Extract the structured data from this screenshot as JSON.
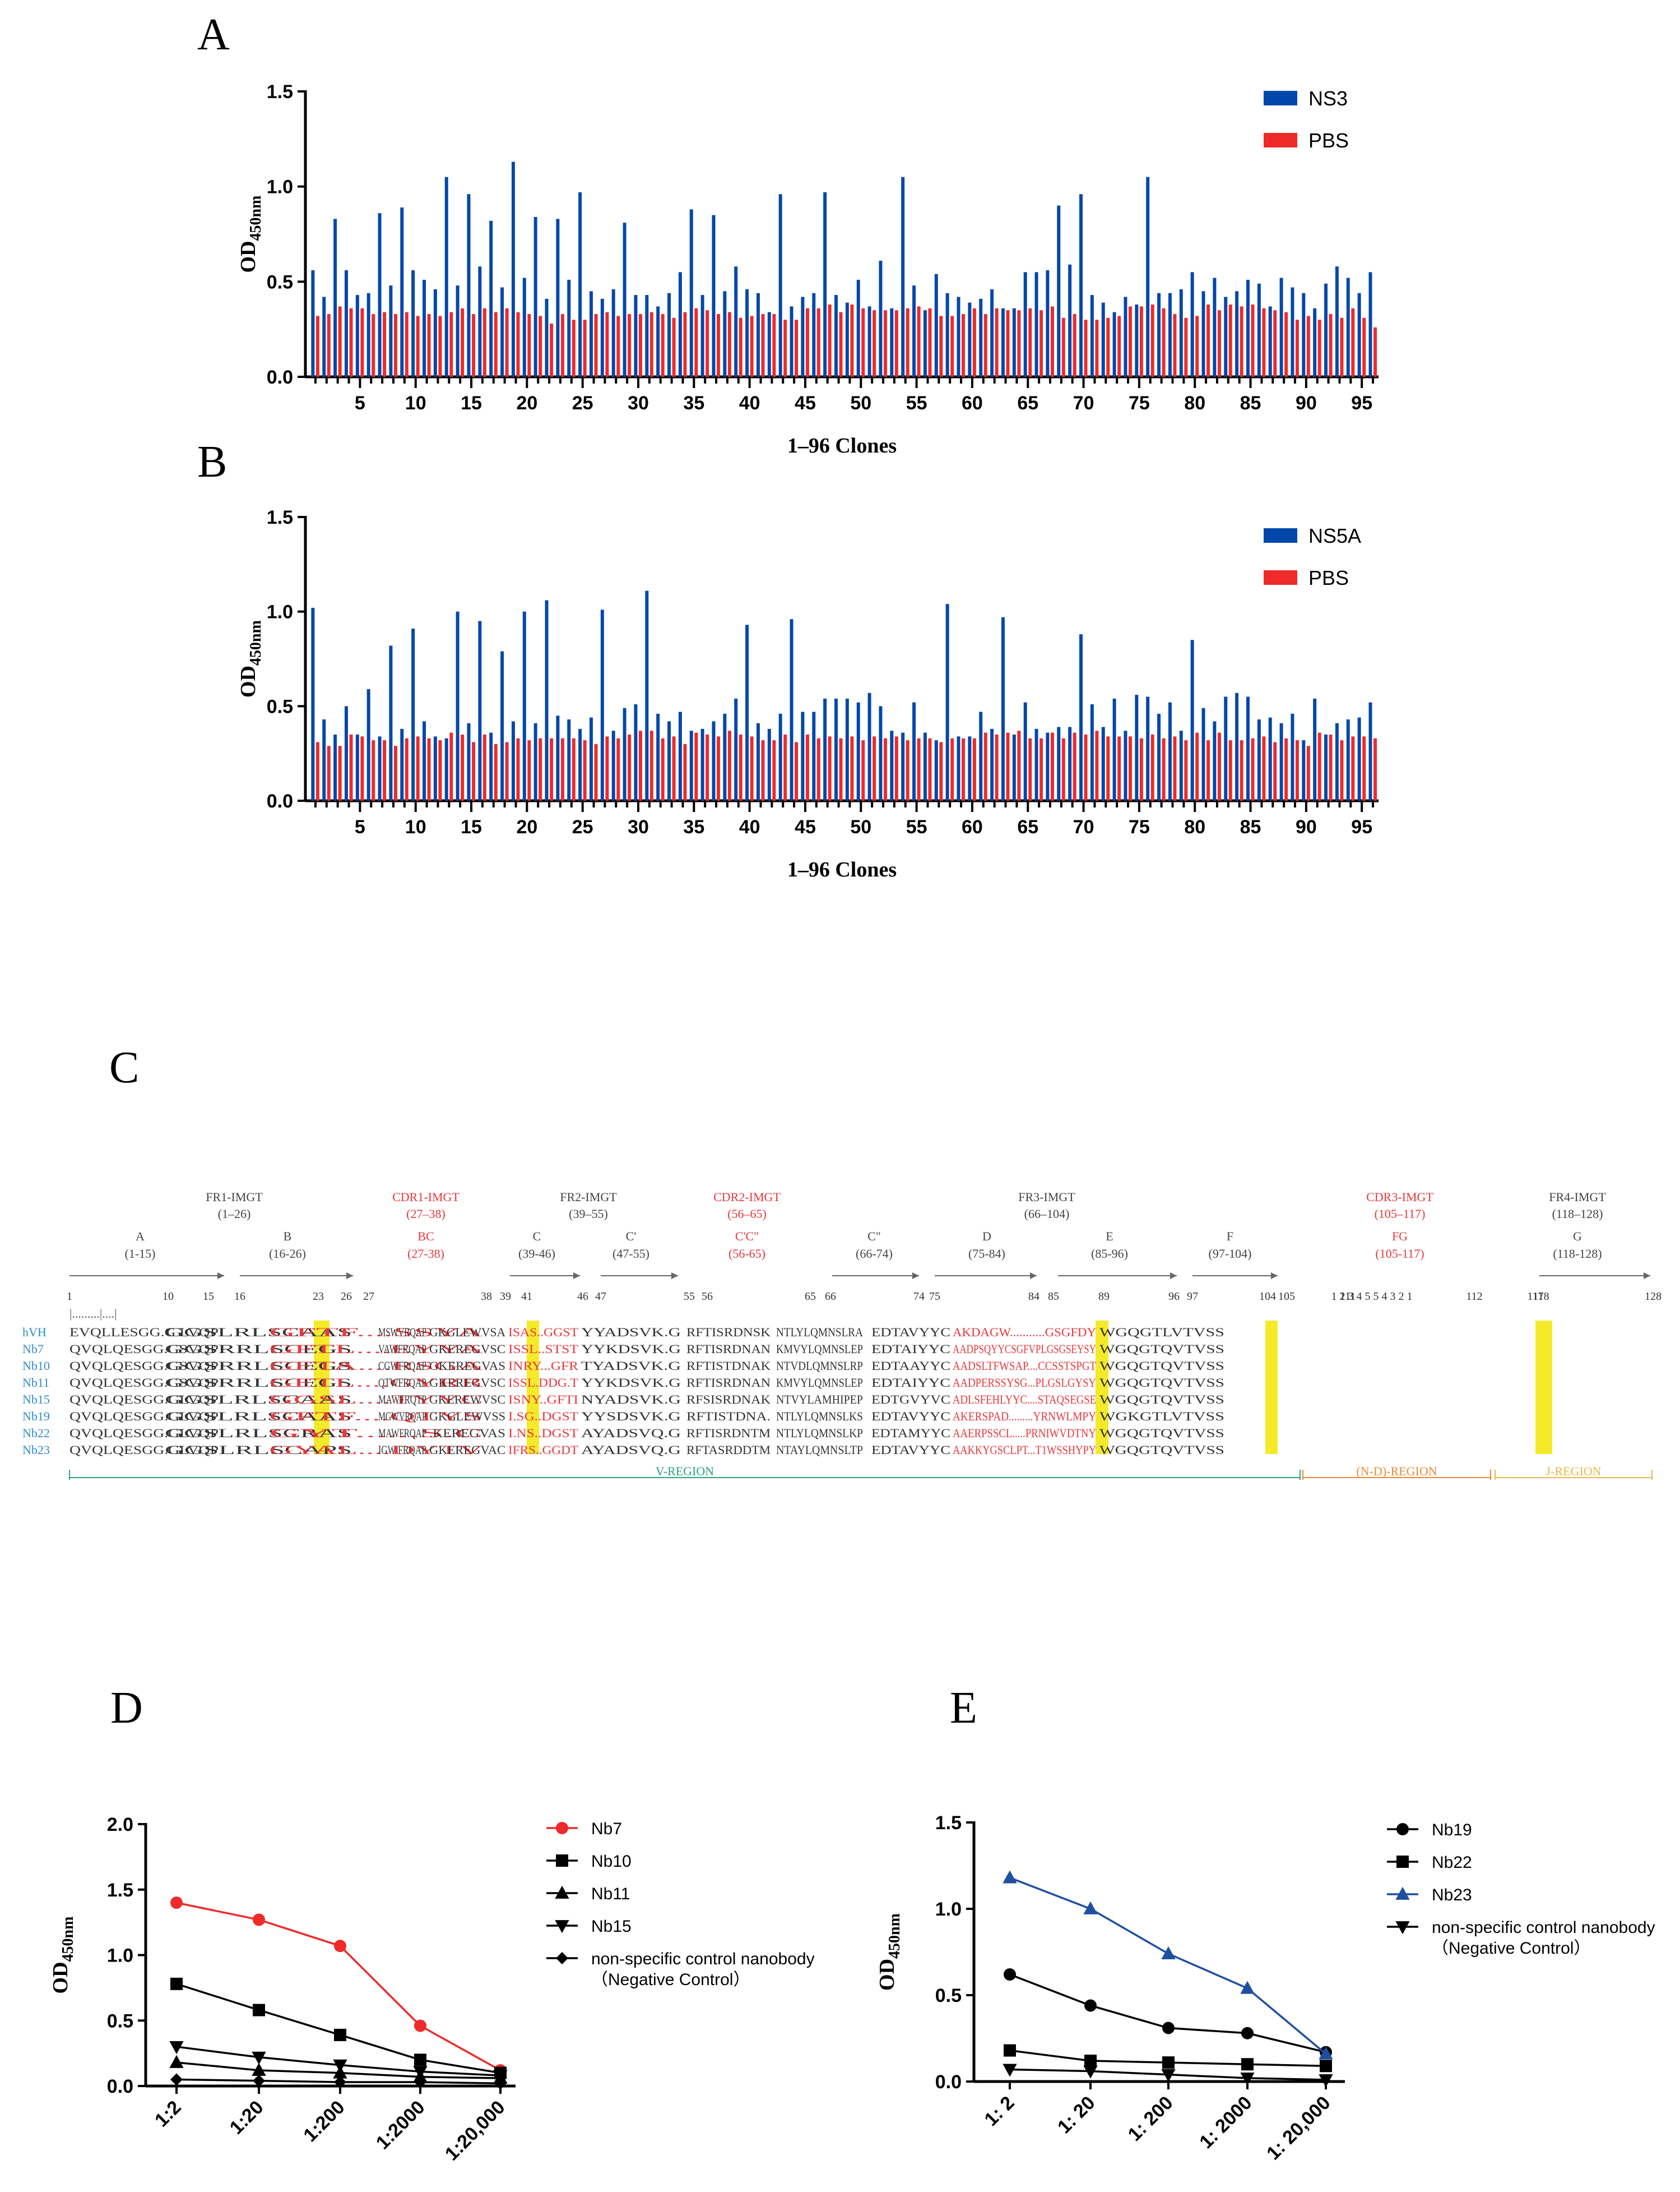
{
  "panels": {
    "A": "A",
    "B": "B",
    "C": "C",
    "D": "D",
    "E": "E"
  },
  "colors": {
    "blue": "#0047ab",
    "red": "#ee2a2a",
    "navy_line": "#1f4fa0",
    "black": "#000000",
    "seq_red": "#e8383d",
    "seq_blue": "#2f8ad0",
    "highlight": "#f5ea2a",
    "vregion": "#2aa37a",
    "ndregion": "#e88a3a",
    "jregion": "#e8b84a"
  },
  "chart_data": [
    {
      "id": "A",
      "type": "bar",
      "xlabel": "1–96 Clones",
      "ylabel_main": "OD",
      "ylabel_sub": "450nm",
      "ylim": [
        0,
        1.5
      ],
      "yticks": [
        "0.0",
        "0.5",
        "1.0",
        "1.5"
      ],
      "xtick_labels": [
        "5",
        "10",
        "15",
        "20",
        "25",
        "30",
        "35",
        "40",
        "45",
        "50",
        "55",
        "60",
        "65",
        "70",
        "75",
        "80",
        "85",
        "90",
        "95"
      ],
      "series": [
        {
          "name": "NS3",
          "color": "#0047ab",
          "values": [
            0.56,
            0.42,
            0.83,
            0.56,
            0.43,
            0.44,
            0.86,
            0.48,
            0.89,
            0.56,
            0.51,
            0.46,
            1.05,
            0.48,
            0.96,
            0.58,
            0.82,
            0.47,
            1.13,
            0.52,
            0.84,
            0.41,
            0.83,
            0.51,
            0.97,
            0.45,
            0.41,
            0.46,
            0.81,
            0.43,
            0.43,
            0.37,
            0.44,
            0.55,
            0.88,
            0.43,
            0.85,
            0.45,
            0.58,
            0.46,
            0.44,
            0.34,
            0.96,
            0.37,
            0.42,
            0.44,
            0.97,
            0.43,
            0.39,
            0.51,
            0.37,
            0.61,
            0.36,
            1.05,
            0.48,
            0.35,
            0.54,
            0.44,
            0.42,
            0.39,
            0.41,
            0.46,
            0.36,
            0.36,
            0.55,
            0.55,
            0.56,
            0.9,
            0.59,
            0.96,
            0.43,
            0.39,
            0.34,
            0.42,
            0.38,
            1.05,
            0.44,
            0.44,
            0.46,
            0.55,
            0.45,
            0.52,
            0.42,
            0.45,
            0.51,
            0.49,
            0.37,
            0.52,
            0.47,
            0.44,
            0.36,
            0.49,
            0.58,
            0.52,
            0.44,
            0.55
          ]
        },
        {
          "name": "PBS",
          "color": "#ee2a2a",
          "values": [
            0.32,
            0.33,
            0.37,
            0.36,
            0.36,
            0.33,
            0.34,
            0.33,
            0.34,
            0.32,
            0.33,
            0.32,
            0.34,
            0.36,
            0.33,
            0.36,
            0.34,
            0.36,
            0.34,
            0.33,
            0.32,
            0.28,
            0.33,
            0.3,
            0.3,
            0.33,
            0.34,
            0.32,
            0.33,
            0.33,
            0.34,
            0.33,
            0.31,
            0.34,
            0.36,
            0.35,
            0.33,
            0.34,
            0.31,
            0.32,
            0.33,
            0.33,
            0.3,
            0.3,
            0.36,
            0.36,
            0.38,
            0.34,
            0.38,
            0.36,
            0.35,
            0.35,
            0.35,
            0.36,
            0.37,
            0.36,
            0.32,
            0.32,
            0.33,
            0.36,
            0.33,
            0.36,
            0.35,
            0.35,
            0.36,
            0.35,
            0.37,
            0.31,
            0.33,
            0.3,
            0.3,
            0.31,
            0.32,
            0.37,
            0.37,
            0.38,
            0.36,
            0.33,
            0.31,
            0.32,
            0.38,
            0.35,
            0.38,
            0.37,
            0.38,
            0.36,
            0.35,
            0.34,
            0.3,
            0.32,
            0.3,
            0.33,
            0.31,
            0.36,
            0.31,
            0.26
          ]
        }
      ]
    },
    {
      "id": "B",
      "type": "bar",
      "xlabel": "1–96 Clones",
      "ylabel_main": "OD",
      "ylabel_sub": "450nm",
      "ylim": [
        0,
        1.5
      ],
      "yticks": [
        "0.0",
        "0.5",
        "1.0",
        "1.5"
      ],
      "xtick_labels": [
        "5",
        "10",
        "15",
        "20",
        "25",
        "30",
        "35",
        "40",
        "45",
        "50",
        "55",
        "60",
        "65",
        "70",
        "75",
        "80",
        "85",
        "90",
        "95"
      ],
      "series": [
        {
          "name": "NS5A",
          "color": "#0047ab",
          "values": [
            1.02,
            0.43,
            0.35,
            0.5,
            0.35,
            0.59,
            0.34,
            0.82,
            0.38,
            0.91,
            0.42,
            0.34,
            0.33,
            1.0,
            0.41,
            0.95,
            0.36,
            0.79,
            0.42,
            1.0,
            0.41,
            1.06,
            0.45,
            0.43,
            0.38,
            0.44,
            1.01,
            0.37,
            0.49,
            0.51,
            1.11,
            0.46,
            0.42,
            0.47,
            0.37,
            0.38,
            0.42,
            0.46,
            0.54,
            0.93,
            0.41,
            0.38,
            0.46,
            0.96,
            0.47,
            0.47,
            0.54,
            0.54,
            0.54,
            0.52,
            0.57,
            0.5,
            0.37,
            0.36,
            0.52,
            0.36,
            0.32,
            1.04,
            0.34,
            0.34,
            0.47,
            0.38,
            0.97,
            0.35,
            0.52,
            0.38,
            0.36,
            0.39,
            0.39,
            0.88,
            0.51,
            0.39,
            0.54,
            0.37,
            0.56,
            0.55,
            0.46,
            0.52,
            0.37,
            0.85,
            0.49,
            0.42,
            0.55,
            0.57,
            0.55,
            0.43,
            0.44,
            0.41,
            0.46,
            0.32,
            0.54,
            0.35,
            0.41,
            0.43,
            0.44,
            0.52
          ]
        },
        {
          "name": "PBS",
          "color": "#ee2a2a",
          "values": [
            0.31,
            0.29,
            0.29,
            0.35,
            0.34,
            0.32,
            0.32,
            0.29,
            0.33,
            0.34,
            0.33,
            0.32,
            0.36,
            0.35,
            0.31,
            0.35,
            0.3,
            0.31,
            0.33,
            0.32,
            0.33,
            0.33,
            0.33,
            0.33,
            0.32,
            0.3,
            0.34,
            0.33,
            0.35,
            0.37,
            0.37,
            0.33,
            0.34,
            0.3,
            0.36,
            0.35,
            0.34,
            0.37,
            0.35,
            0.34,
            0.32,
            0.32,
            0.35,
            0.31,
            0.35,
            0.33,
            0.34,
            0.33,
            0.34,
            0.32,
            0.34,
            0.33,
            0.34,
            0.32,
            0.33,
            0.33,
            0.31,
            0.33,
            0.33,
            0.33,
            0.36,
            0.35,
            0.36,
            0.37,
            0.33,
            0.33,
            0.36,
            0.33,
            0.36,
            0.35,
            0.37,
            0.34,
            0.34,
            0.34,
            0.33,
            0.35,
            0.33,
            0.34,
            0.32,
            0.36,
            0.32,
            0.36,
            0.32,
            0.32,
            0.33,
            0.34,
            0.31,
            0.33,
            0.32,
            0.29,
            0.36,
            0.35,
            0.32,
            0.34,
            0.34,
            0.33
          ]
        }
      ]
    },
    {
      "id": "D",
      "type": "line",
      "ylabel_main": "OD",
      "ylabel_sub": "450nm",
      "ylim": [
        0,
        2.0
      ],
      "yticks": [
        "0.0",
        "0.5",
        "1.0",
        "1.5",
        "2.0"
      ],
      "categories": [
        "1:2",
        "1:20",
        "1:200",
        "1:2000",
        "1:20,000"
      ],
      "series": [
        {
          "name": "Nb7",
          "color": "#ee2a2a",
          "marker": "circle",
          "values": [
            1.4,
            1.27,
            1.07,
            0.46,
            0.12
          ]
        },
        {
          "name": "Nb10",
          "color": "#000000",
          "marker": "square",
          "values": [
            0.78,
            0.58,
            0.39,
            0.2,
            0.1
          ]
        },
        {
          "name": "Nb11",
          "color": "#000000",
          "marker": "triangle",
          "values": [
            0.18,
            0.12,
            0.1,
            0.07,
            0.06
          ]
        },
        {
          "name": "Nb15",
          "color": "#000000",
          "marker": "triangle-down",
          "values": [
            0.3,
            0.22,
            0.16,
            0.11,
            0.08
          ]
        },
        {
          "name": "non-specific control nanobody",
          "name2": "（Negative Control）",
          "color": "#000000",
          "marker": "diamond",
          "values": [
            0.05,
            0.04,
            0.03,
            0.03,
            0.02
          ]
        }
      ]
    },
    {
      "id": "E",
      "type": "line",
      "ylabel_main": "OD",
      "ylabel_sub": "450nm",
      "ylim": [
        0,
        1.5
      ],
      "yticks": [
        "0.0",
        "0.5",
        "1.0",
        "1.5"
      ],
      "categories": [
        "1: 2",
        "1: 20",
        "1: 200",
        "1: 2000",
        "1: 20,000"
      ],
      "series": [
        {
          "name": "Nb19",
          "color": "#000000",
          "marker": "circle",
          "values": [
            0.62,
            0.44,
            0.31,
            0.28,
            0.17
          ]
        },
        {
          "name": "Nb22",
          "color": "#000000",
          "marker": "square",
          "values": [
            0.18,
            0.12,
            0.11,
            0.1,
            0.09
          ]
        },
        {
          "name": "Nb23",
          "color": "#1f4fa0",
          "marker": "triangle",
          "values": [
            1.18,
            1.0,
            0.74,
            0.54,
            0.16
          ]
        },
        {
          "name": "non-specific control nanobody",
          "name2": "（Negative Control）",
          "color": "#000000",
          "marker": "triangle-down",
          "values": [
            0.07,
            0.06,
            0.04,
            0.02,
            0.01
          ]
        }
      ]
    }
  ],
  "alignment": {
    "regions": [
      {
        "name": "FR1-IMGT",
        "range": "(1–26)",
        "kind": "fr"
      },
      {
        "name": "CDR1-IMGT",
        "range": "(27–38)",
        "kind": "cdr"
      },
      {
        "name": "FR2-IMGT",
        "range": "(39–55)",
        "kind": "fr"
      },
      {
        "name": "CDR2-IMGT",
        "range": "(56–65)",
        "kind": "cdr"
      },
      {
        "name": "FR3-IMGT",
        "range": "(66–104)",
        "kind": "fr"
      },
      {
        "name": "CDR3-IMGT",
        "range": "(105–117)",
        "kind": "cdr"
      },
      {
        "name": "FR4-IMGT",
        "range": "(118–128)",
        "kind": "fr"
      }
    ],
    "strands": [
      {
        "name": "A",
        "range": "(1-15)",
        "kind": "fr"
      },
      {
        "name": "B",
        "range": "(16-26)",
        "kind": "fr"
      },
      {
        "name": "BC",
        "range": "(27-38)",
        "kind": "cdr"
      },
      {
        "name": "C",
        "range": "(39-46)",
        "kind": "fr"
      },
      {
        "name": "C'",
        "range": "(47-55)",
        "kind": "fr"
      },
      {
        "name": "C'C\"",
        "range": "(56-65)",
        "kind": "cdr"
      },
      {
        "name": "C\"",
        "range": "(66-74)",
        "kind": "fr"
      },
      {
        "name": "D",
        "range": "(75-84)",
        "kind": "fr"
      },
      {
        "name": "E",
        "range": "(85-96)",
        "kind": "fr"
      },
      {
        "name": "F",
        "range": "(97-104)",
        "kind": "fr"
      },
      {
        "name": "FG",
        "range": "(105-117)",
        "kind": "cdr"
      },
      {
        "name": "G",
        "range": "(118-128)",
        "kind": "fr"
      }
    ],
    "positions": [
      "1",
      "10",
      "15",
      "16",
      "23",
      "26",
      "27",
      "38",
      "39",
      "41",
      "46",
      "47",
      "55",
      "56",
      "65",
      "66",
      "74",
      "75",
      "84",
      "85",
      "89",
      "96",
      "97",
      "104",
      "105",
      "111",
      "112",
      "117",
      "118",
      "128",
      "1 2 3 4 5 5 4 3 2 1"
    ],
    "rows": [
      {
        "name": "hVH",
        "seqs": [
          "EVQLLESGG.G LVQP",
          "GGSLRLSCAAS",
          "GFTF....SSYA",
          "MSWVRQAP",
          "GKGLEWVSA",
          "ISAS..GGST",
          "YYADSVK.G",
          "RFTISRDNSK",
          "NTLYLQMNSLRA",
          "EDTAVYYC",
          "AKDAGW...........GSGFDY",
          "WGQGTLVTVSS"
        ]
      },
      {
        "name": "Nb7",
        "seqs": [
          "QVQLQESGG.GSVQP",
          "GGSRRLSCEGS",
          "GFTL....EYYA",
          "VAWFRQAP",
          "GKEREGVSC",
          "ISSL..STST",
          "YYKDSVK.G",
          "RFTISRDNAN",
          "KMVYLQMNSLEP",
          "EDTAIYYC",
          "AADPSQYYCSGFVPLGSGSEYSY",
          "WGQGTQVTVSS"
        ]
      },
      {
        "name": "Nb10",
        "seqs": [
          "QVQLQESGG.GSVQP",
          "GGSRRLSCEGS",
          "GETA....RSGA",
          "CGWFRQAP",
          "GKEREGVAS",
          "INRY...GFR",
          "TYADSVK.G",
          "RFTISTDNAK",
          "NTVDLQMNSLRP",
          "EDTAAYYC",
          "AADSLTFWSAP....CCSSTSPGT",
          "WGQGTQVTVSS"
        ]
      },
      {
        "name": "Nb11",
        "seqs": [
          "QVQLQESGG.GSVQP",
          "GGSRRLSCEGS",
          "GETL....GYRR",
          "QTWFRQAP",
          "GKEREGVSC",
          "ISSL.DDG.T",
          "YYKDSVK.G",
          "RFTISRDNAN",
          "KMVYLQMNSLEP",
          "EDTAIYYC",
          "AADPERSSYSG...PLGSLGYSY",
          "WGQGTQVTVSS"
        ]
      },
      {
        "name": "Nb15",
        "seqs": [
          "QVQLQESGG.GLVQP",
          "GGSLRLSCAAS",
          "GGSL....TYYC",
          "MAWFRQTP",
          "GKEREWVSC",
          "ISNY..GFTI",
          "NYADSVK.G",
          "RFSISRDNAK",
          "NTVYLAMHIPEP",
          "EDTGVYVC",
          "ADLSFEHLYYC....STAQSEGSE",
          "WGQGTQVTVSS"
        ]
      },
      {
        "name": "Nb19",
        "seqs": [
          "QVQLQESGG.GLVQP",
          "GGSLRLSCAAS",
          "GFTF....QTYS",
          "MGWVRQAP",
          "GKGLEWVSS",
          "I.SG..DGST",
          "YYSDSVK.G",
          "RFTISTDNA.",
          "NTLYLQMNSLKS",
          "EDTAVYYC",
          "AKERSPAD.........YRNWLMPY",
          "WGKGTLVTVSS"
        ]
      },
      {
        "name": "Nb22",
        "seqs": [
          "QVQLQESGG.GLVQP",
          "GGSLRLSCRAS",
          "GYT......S.C",
          "MAWFRQAP",
          ".KEREGVAS",
          "I.NS..DGST",
          "AYADSVQ.G",
          "RFTISRDNTM",
          "NTLYLQMNSLKP",
          "EDTAMYYC",
          "AAERPSSCL.....PRNIWVDTNY",
          "WGQGTQVTVSS"
        ]
      },
      {
        "name": "Nb23",
        "seqs": [
          "QVQLQESGG.GLVQP",
          "GGSLRLSCAPS",
          "GYAL....DYTV",
          "IGW FRQAP",
          "GKEREGVAC",
          "IFRS..GGDT",
          "AYADSVQ.G",
          "RFTASRDDTM",
          "NTAYLQMNSLTP",
          "EDTAVYYC",
          "AAKKYGSCLPT...T1WSSHYPY",
          "WGQGTQVTVSS"
        ]
      }
    ],
    "region_bars": [
      {
        "name": "V-REGION"
      },
      {
        "name": "(N-D)-REGION"
      },
      {
        "name": "J-REGION"
      }
    ]
  }
}
